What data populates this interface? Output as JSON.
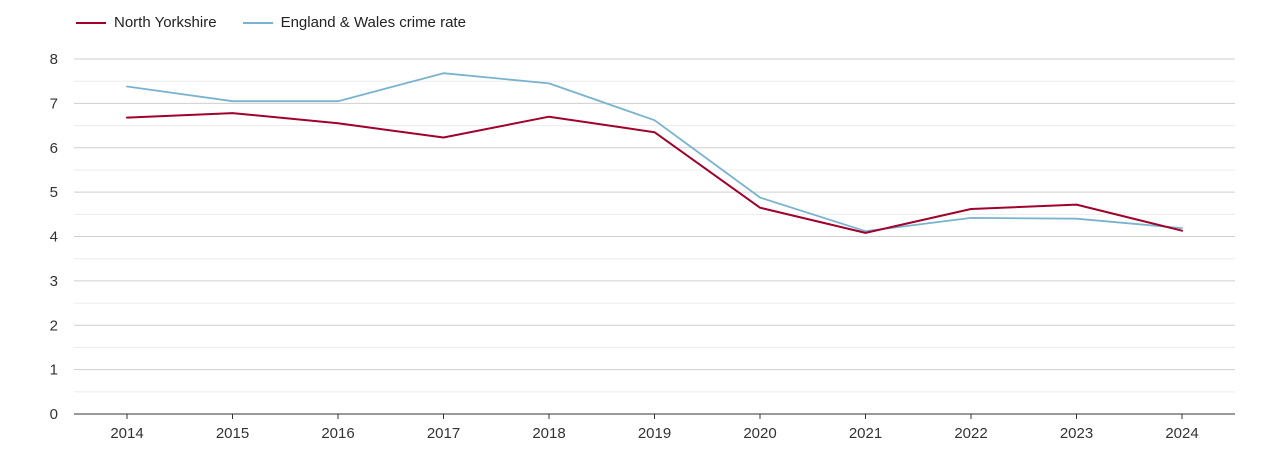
{
  "chart_data": {
    "type": "line",
    "title": "",
    "xlabel": "",
    "ylabel": "",
    "categories": [
      "2014",
      "2015",
      "2016",
      "2017",
      "2018",
      "2019",
      "2020",
      "2021",
      "2022",
      "2023",
      "2024"
    ],
    "ylim": [
      0,
      8
    ],
    "yticks": [
      0,
      1,
      2,
      3,
      4,
      5,
      6,
      7,
      8
    ],
    "grid": true,
    "legend_position": "top-left",
    "series": [
      {
        "name": "North Yorkshire",
        "color": "#a0002b",
        "values": [
          6.68,
          6.78,
          6.55,
          6.23,
          6.7,
          6.35,
          4.65,
          4.08,
          4.62,
          4.72,
          4.13
        ]
      },
      {
        "name": "England & Wales crime rate",
        "color": "#7ab3cf",
        "values": [
          7.38,
          7.05,
          7.05,
          7.68,
          7.45,
          6.62,
          4.88,
          4.12,
          4.42,
          4.4,
          4.19
        ]
      }
    ]
  }
}
